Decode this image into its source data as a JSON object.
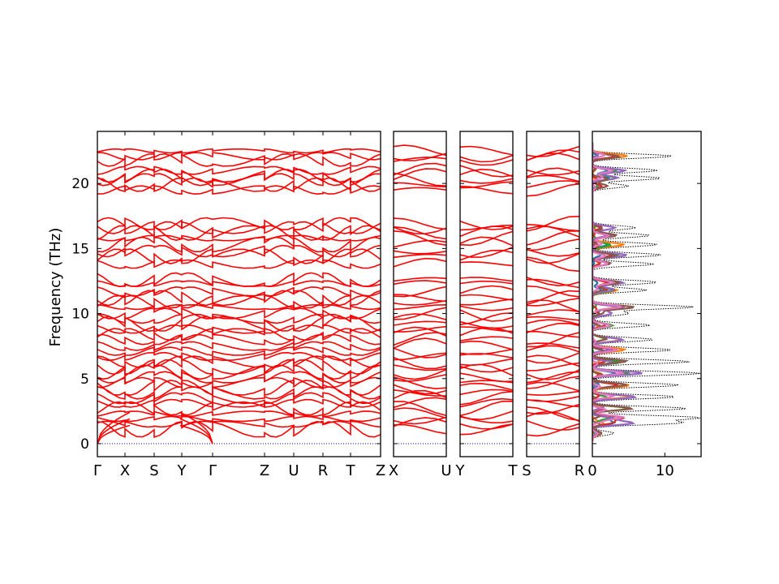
{
  "chart_data": {
    "type": "line",
    "ylabel": "Frequency (THz)",
    "ylim": [
      -1,
      24
    ],
    "yticks": [
      0,
      5,
      10,
      15,
      20
    ],
    "band_color": "#ff0000",
    "zero_line_color": "#0000cc",
    "panels": [
      {
        "kind": "bands",
        "x_labels": [
          "Γ",
          "X",
          "S",
          "Y",
          "Γ",
          "Z",
          "U",
          "R",
          "T",
          "Z"
        ]
      },
      {
        "kind": "bands",
        "x_labels": [
          "X",
          "U"
        ]
      },
      {
        "kind": "bands",
        "x_labels": [
          "Y",
          "T"
        ]
      },
      {
        "kind": "bands",
        "x_labels": [
          "S",
          "R"
        ]
      },
      {
        "kind": "dos",
        "xlim": [
          0,
          15
        ],
        "xticks": [
          0,
          10
        ],
        "total_color": "#000000",
        "partial_colors": [
          "#1f77b4",
          "#ff7f0e",
          "#2ca02c",
          "#d62728",
          "#9467bd",
          "#8c564b",
          "#e377c2"
        ]
      }
    ],
    "band_levels": [
      22.5,
      22.1,
      21.8,
      21.0,
      20.6,
      20.3,
      19.9,
      19.5,
      16.9,
      16.6,
      16.2,
      15.8,
      15.3,
      14.8,
      14.4,
      13.8,
      12.6,
      12.3,
      11.7,
      11.2,
      10.9,
      10.5,
      10.0,
      9.6,
      9.2,
      8.8,
      8.4,
      8.0,
      7.5,
      7.1,
      6.7,
      6.3,
      5.9,
      5.5,
      5.1,
      4.7,
      4.3,
      3.9,
      3.5,
      3.1,
      2.7,
      2.3,
      1.9,
      1.5,
      1.1
    ],
    "dos_peaks": [
      [
        22.1,
        11.0
      ],
      [
        21.0,
        9.0
      ],
      [
        20.4,
        9.5
      ],
      [
        19.8,
        5.0
      ],
      [
        16.6,
        6.0
      ],
      [
        16.0,
        8.0
      ],
      [
        15.3,
        9.0
      ],
      [
        14.5,
        9.5
      ],
      [
        13.8,
        8.5
      ],
      [
        12.4,
        9.0
      ],
      [
        11.8,
        7.5
      ],
      [
        10.5,
        14.0
      ],
      [
        10.0,
        5.0
      ],
      [
        9.1,
        8.0
      ],
      [
        8.0,
        8.5
      ],
      [
        7.2,
        11.0
      ],
      [
        6.3,
        13.5
      ],
      [
        5.4,
        15.0
      ],
      [
        4.5,
        12.0
      ],
      [
        3.6,
        11.5
      ],
      [
        2.7,
        13.0
      ],
      [
        2.0,
        14.5
      ],
      [
        1.6,
        12.0
      ],
      [
        0.8,
        3.0
      ]
    ]
  }
}
